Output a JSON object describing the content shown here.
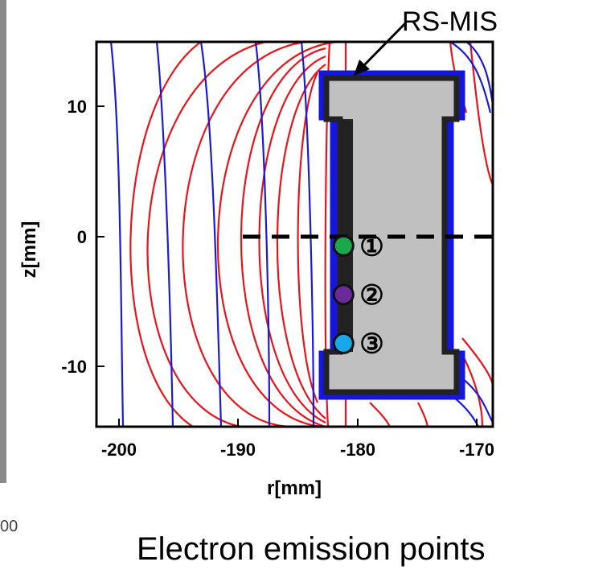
{
  "figure": {
    "annotation": "RS-MIS",
    "caption": "Electron emission points",
    "corner_text": "00",
    "x_axis": {
      "label": "r[mm]",
      "range": [
        -200,
        -170
      ],
      "ticks": [
        {
          "value": -200,
          "label": "-200"
        },
        {
          "value": -190,
          "label": "-190"
        },
        {
          "value": -180,
          "label": "-180"
        },
        {
          "value": -170,
          "label": "-170"
        }
      ]
    },
    "y_axis": {
      "label": "z[mm]",
      "range": [
        -15,
        15
      ],
      "ticks": [
        {
          "value": 10,
          "label": "10"
        },
        {
          "value": 0,
          "label": "0"
        },
        {
          "value": -10,
          "label": "-10"
        }
      ]
    },
    "colors": {
      "equipotential": "#e8141c",
      "field_lines": "#1a1ad8",
      "electrode_fill": "#c0c0c0",
      "electrode_edge": "#222222",
      "coating": "#1515e0"
    },
    "emission_points": [
      {
        "id": 1,
        "label": "①",
        "r": -181.3,
        "z": -0.9,
        "color": "#1aa84c"
      },
      {
        "id": 2,
        "label": "②",
        "r": -181.3,
        "z": -4.7,
        "color": "#6a2a9a"
      },
      {
        "id": 3,
        "label": "③",
        "r": -181.3,
        "z": -8.5,
        "color": "#18a8e8"
      }
    ]
  }
}
